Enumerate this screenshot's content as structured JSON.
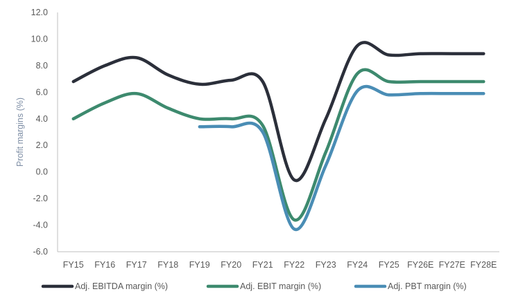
{
  "chart_data": {
    "type": "line",
    "title": "",
    "xlabel": "",
    "ylabel": "Profit margins (%)",
    "categories": [
      "FY15",
      "FY16",
      "FY17",
      "FY18",
      "FY19",
      "FY20",
      "FY21",
      "FY22",
      "FY23",
      "FY24",
      "FY25",
      "FY26E",
      "FY27E",
      "FY28E"
    ],
    "y_ticks": [
      "-6.0",
      "-4.0",
      "-2.0",
      "0.0",
      "2.0",
      "4.0",
      "6.0",
      "8.0",
      "10.0",
      "12.0"
    ],
    "ylim": [
      -6,
      12
    ],
    "grid": false,
    "legend_position": "bottom",
    "series": [
      {
        "name": "Adj. EBITDA margin (%)",
        "color": "#2b2f3a",
        "values": [
          6.8,
          8.0,
          8.6,
          7.3,
          6.6,
          6.9,
          6.8,
          -0.6,
          4.0,
          9.5,
          8.8,
          8.9,
          8.9,
          8.9
        ]
      },
      {
        "name": "Adj. EBIT margin (%)",
        "color": "#3d8a6e",
        "values": [
          4.0,
          5.2,
          5.9,
          4.8,
          4.0,
          4.0,
          3.5,
          -3.6,
          1.5,
          7.4,
          6.8,
          6.8,
          6.8,
          6.8
        ]
      },
      {
        "name": "Adj. PBT margin (%)",
        "color": "#4a8db5",
        "values": [
          null,
          null,
          null,
          null,
          3.4,
          3.4,
          3.0,
          -4.3,
          0.5,
          6.1,
          5.8,
          5.9,
          5.9,
          5.9
        ]
      }
    ]
  }
}
